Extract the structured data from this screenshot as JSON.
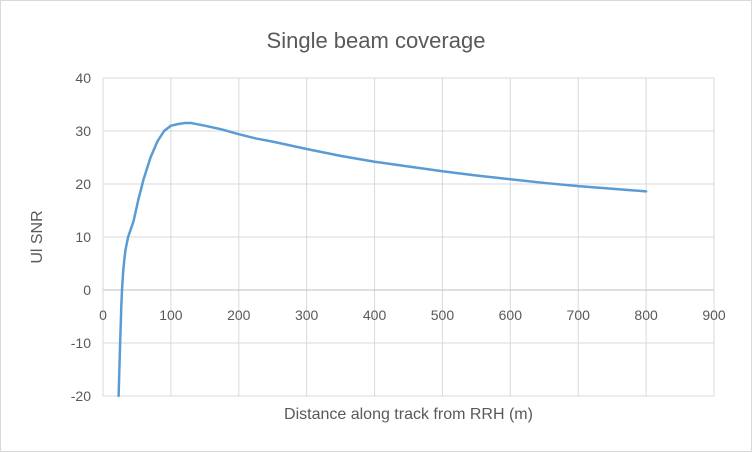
{
  "chart_data": {
    "type": "line",
    "title": "Single beam coverage",
    "xlabel": "Distance along track from RRH (m)",
    "ylabel": "Ul SNR",
    "xlim": [
      0,
      900
    ],
    "ylim": [
      -20,
      40
    ],
    "xticks": [
      0,
      100,
      200,
      300,
      400,
      500,
      600,
      700,
      800,
      900
    ],
    "yticks": [
      -20,
      -10,
      0,
      10,
      20,
      30,
      40
    ],
    "grid": true,
    "legend": "none",
    "series": [
      {
        "color": "#5b9bd5",
        "points": [
          [
            23,
            -20
          ],
          [
            25,
            -11
          ],
          [
            27,
            -3
          ],
          [
            28,
            0
          ],
          [
            30,
            4
          ],
          [
            33,
            7.5
          ],
          [
            37,
            10
          ],
          [
            45,
            13
          ],
          [
            52,
            17
          ],
          [
            60,
            21
          ],
          [
            70,
            25
          ],
          [
            80,
            28
          ],
          [
            90,
            30
          ],
          [
            100,
            31
          ],
          [
            110,
            31.3
          ],
          [
            120,
            31.5
          ],
          [
            130,
            31.5
          ],
          [
            150,
            31
          ],
          [
            175,
            30.3
          ],
          [
            200,
            29.4
          ],
          [
            225,
            28.6
          ],
          [
            250,
            28
          ],
          [
            300,
            26.6
          ],
          [
            350,
            25.3
          ],
          [
            400,
            24.2
          ],
          [
            450,
            23.3
          ],
          [
            500,
            22.4
          ],
          [
            550,
            21.6
          ],
          [
            600,
            20.9
          ],
          [
            650,
            20.2
          ],
          [
            700,
            19.6
          ],
          [
            750,
            19.1
          ],
          [
            800,
            18.6
          ]
        ]
      }
    ]
  }
}
